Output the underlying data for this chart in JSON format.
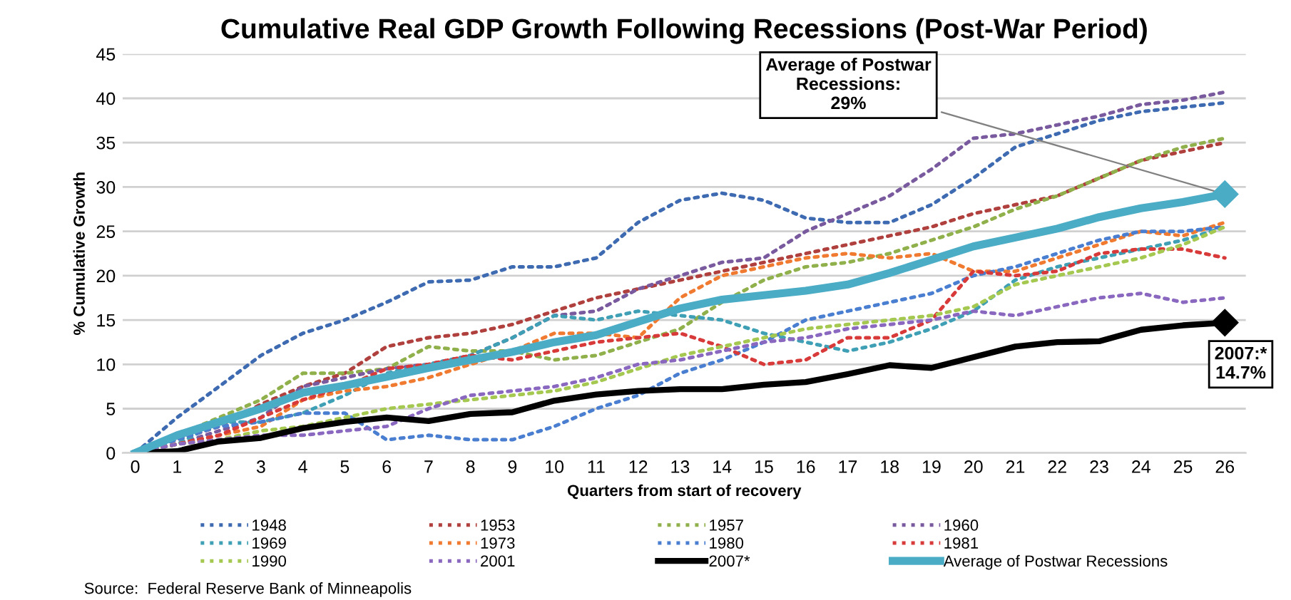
{
  "chart_data": {
    "type": "line",
    "title": "Cumulative Real GDP Growth Following Recessions (Post-War Period)",
    "xlabel": "Quarters from start of recovery",
    "ylabel": "% Cumulative Growth",
    "categories": [
      "0",
      "1",
      "2",
      "3",
      "4",
      "5",
      "6",
      "7",
      "8",
      "9",
      "10",
      "11",
      "12",
      "13",
      "14",
      "15",
      "16",
      "17",
      "18",
      "19",
      "20",
      "21",
      "22",
      "23",
      "24",
      "25",
      "26"
    ],
    "ylim": [
      0,
      45
    ],
    "yticks": [
      0,
      5,
      10,
      15,
      20,
      25,
      30,
      35,
      40,
      45
    ],
    "grid": "y",
    "legend": "bottom",
    "series": [
      {
        "name": "1948",
        "color": "#3d6ab0",
        "line_style": "dotted",
        "values": [
          0,
          4,
          7.5,
          11,
          13.5,
          15,
          17,
          19.3,
          19.5,
          21,
          21,
          22,
          26,
          28.5,
          29.3,
          28.5,
          26.5,
          26,
          26,
          28,
          31,
          34.5,
          36,
          37.5,
          38.5,
          39,
          39.5
        ]
      },
      {
        "name": "1953",
        "color": "#b0403d",
        "line_style": "dotted",
        "values": [
          0,
          1.5,
          3,
          5.5,
          7.5,
          9,
          12,
          13,
          13.5,
          14.5,
          16,
          17.5,
          18.5,
          19.5,
          20.5,
          21.5,
          22.5,
          23.5,
          24.5,
          25.5,
          27,
          28,
          29,
          31,
          33,
          34,
          35
        ]
      },
      {
        "name": "1957",
        "color": "#8fb04a",
        "line_style": "dotted",
        "values": [
          0,
          2,
          4,
          6,
          9,
          9,
          9.5,
          12,
          11.5,
          11.5,
          10.5,
          11,
          12.5,
          14,
          17,
          19.5,
          21,
          21.5,
          22.5,
          24,
          25.5,
          27.5,
          29,
          31,
          33,
          34.5,
          35.5
        ]
      },
      {
        "name": "1960",
        "color": "#7a5a9e",
        "line_style": "dotted",
        "values": [
          0,
          1,
          2.5,
          4,
          7.5,
          8.5,
          9.5,
          10,
          11,
          13,
          15.5,
          16,
          18.5,
          20,
          21.5,
          22,
          25,
          27,
          29,
          32,
          35.5,
          36,
          37,
          38,
          39.3,
          39.8,
          40.7
        ]
      },
      {
        "name": "1969",
        "color": "#3fa0b5",
        "line_style": "dotted",
        "values": [
          0,
          1,
          3.5,
          3.5,
          4.5,
          6.5,
          9,
          10,
          11,
          13,
          15.5,
          15,
          16,
          15.5,
          15,
          13.5,
          12.5,
          11.5,
          12.5,
          14,
          16,
          19.5,
          21,
          22,
          23,
          24,
          25.5
        ]
      },
      {
        "name": "1973",
        "color": "#f07a30",
        "line_style": "dotted",
        "values": [
          0,
          1,
          2,
          3,
          6,
          7,
          7.5,
          8.5,
          10,
          11.5,
          13.5,
          13.5,
          13,
          17.5,
          20,
          21,
          22,
          22.5,
          22,
          22.5,
          20.5,
          20.5,
          22,
          23.5,
          25,
          24.5,
          26
        ]
      },
      {
        "name": "1980",
        "color": "#4a7ed0",
        "line_style": "dotted",
        "values": [
          0,
          1.5,
          3,
          3.5,
          4.5,
          4.5,
          1.5,
          2,
          1.5,
          1.5,
          3,
          5,
          6.5,
          9,
          10.5,
          12.5,
          15,
          16,
          17,
          18,
          20,
          21,
          22.5,
          24,
          25,
          25,
          25.5
        ]
      },
      {
        "name": "1981",
        "color": "#d83a3a",
        "line_style": "dotted",
        "values": [
          0,
          1,
          2,
          4,
          6,
          7.5,
          9.5,
          10,
          11,
          10.5,
          11.5,
          12.5,
          13,
          13.5,
          12,
          10,
          10.5,
          13,
          13,
          15,
          20.5,
          20,
          20.5,
          22.5,
          23,
          23,
          22
        ]
      },
      {
        "name": "1990",
        "color": "#a5c850",
        "line_style": "dotted",
        "values": [
          0,
          1,
          1.5,
          2.5,
          3,
          4,
          5,
          5.5,
          6,
          6.5,
          7,
          8,
          9.5,
          11,
          12,
          13,
          14,
          14.5,
          15,
          15.5,
          16.5,
          19,
          20,
          21,
          22,
          23.5,
          25.5
        ]
      },
      {
        "name": "2001",
        "color": "#8a68c0",
        "line_style": "dotted",
        "values": [
          0,
          1,
          1.5,
          2,
          2,
          2.5,
          3,
          5,
          6.5,
          7,
          7.5,
          8.5,
          10,
          10.5,
          11.5,
          12.5,
          13,
          14,
          14.5,
          15,
          16,
          15.5,
          16.5,
          17.5,
          18,
          17,
          17.5
        ]
      },
      {
        "name": "2007*",
        "color": "#000000",
        "line_style": "solid",
        "values": [
          0,
          0.2,
          1.3,
          1.7,
          2.8,
          3.5,
          4,
          3.6,
          4.4,
          4.6,
          5.9,
          6.6,
          7,
          7.2,
          7.2,
          7.7,
          8,
          8.9,
          9.9,
          9.6,
          10.8,
          12,
          12.5,
          12.6,
          13.9,
          14.4,
          14.7
        ]
      },
      {
        "name": "Average of Postwar Recessions",
        "color": "#4bacc6",
        "line_style": "solid",
        "values": [
          0,
          2,
          3.5,
          5,
          6.8,
          7.6,
          8.6,
          9.6,
          10.5,
          11.4,
          12.5,
          13.3,
          14.8,
          16.3,
          17.3,
          17.8,
          18.3,
          19,
          20.3,
          21.8,
          23.3,
          24.3,
          25.3,
          26.6,
          27.6,
          28.3,
          29.2
        ]
      }
    ],
    "annotations": [
      {
        "text": "Average of Postwar\nRecessions:\n29%",
        "x": "26",
        "y": 29.2
      },
      {
        "text": "2007:*\n14.7%",
        "x": "26",
        "y": 14.7
      },
      "Source:  Federal Reserve Bank of Minneapolis"
    ]
  }
}
